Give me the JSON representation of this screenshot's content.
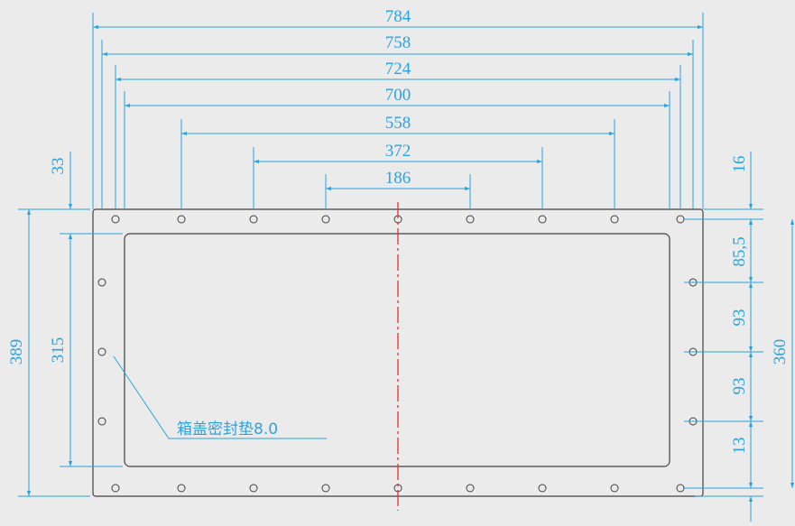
{
  "colors": {
    "background": "#ebebeb",
    "dimension": "#2aa3e0",
    "outline": "#404040",
    "centerline": "#e53030"
  },
  "horizontal_dimensions": [
    "784",
    "758",
    "724",
    "700",
    "558",
    "372",
    "186"
  ],
  "left_dimensions": {
    "top_offset": "33",
    "inner_height": "315",
    "outer_height": "389"
  },
  "right_dimensions": {
    "top_offset": "16",
    "hole_gap_1": "85,5",
    "hole_gap_2": "93",
    "hole_gap_3": "93",
    "hole_gap_4": "13",
    "total_height": "360"
  },
  "note": "箱盖密封垫8.0"
}
